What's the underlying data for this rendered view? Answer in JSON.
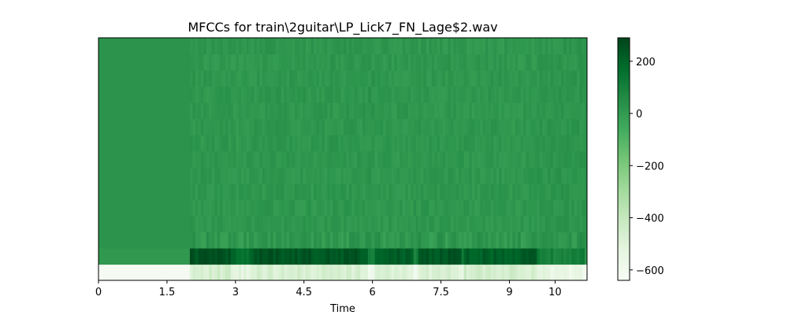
{
  "chart_data": {
    "type": "heatmap",
    "title": "MFCCs for train\\2guitar\\LP_Lick7_FN_Lage$2.wav",
    "xlabel": "Time",
    "ylabel": "",
    "xlim": [
      0,
      10.7
    ],
    "x_ticks": [
      0,
      1.5,
      3,
      4.5,
      6,
      7.5,
      9,
      10
    ],
    "x_tick_labels": [
      "0",
      "1.5",
      "3",
      "4.5",
      "6",
      "7.5",
      "9",
      "10"
    ],
    "n_coefficients": 15,
    "colormap": "Greens",
    "color_range": [
      -640,
      290
    ],
    "colorbar_ticks": [
      200,
      0,
      -200,
      -400,
      -600
    ],
    "colorbar_tick_labels": [
      "200",
      "0",
      "−200",
      "−400",
      "−600"
    ],
    "silence_end_time": 2.0,
    "segments": [
      {
        "start": 0.0,
        "end": 2.0,
        "c0": -630,
        "c1": 9,
        "c2_14": 28
      },
      {
        "start": 2.0,
        "end": 2.9,
        "c0": -460,
        "c1": 245,
        "c2_14": 15
      },
      {
        "start": 2.9,
        "end": 3.35,
        "c0": -520,
        "c1": 170,
        "c2_14": 10
      },
      {
        "start": 3.35,
        "end": 5.9,
        "c0": -470,
        "c1": 240,
        "c2_14": 15
      },
      {
        "start": 5.9,
        "end": 6.05,
        "c0": -600,
        "c1": 80,
        "c2_14": 20
      },
      {
        "start": 6.05,
        "end": 6.9,
        "c0": -490,
        "c1": 225,
        "c2_14": 12
      },
      {
        "start": 6.9,
        "end": 7.0,
        "c0": -580,
        "c1": 100,
        "c2_14": 20
      },
      {
        "start": 7.0,
        "end": 7.95,
        "c0": -480,
        "c1": 235,
        "c2_14": 14
      },
      {
        "start": 7.95,
        "end": 8.0,
        "c0": -560,
        "c1": 120,
        "c2_14": 20
      },
      {
        "start": 8.0,
        "end": 9.6,
        "c0": -450,
        "c1": 215,
        "c2_14": 12
      },
      {
        "start": 9.6,
        "end": 9.9,
        "c0": -540,
        "c1": 110,
        "c2_14": 18
      },
      {
        "start": 9.9,
        "end": 10.65,
        "c0": -560,
        "c1": 95,
        "c2_14": 22
      },
      {
        "start": 10.65,
        "end": 10.7,
        "c0": -630,
        "c1": 9,
        "c2_14": 28
      }
    ],
    "grid": false
  }
}
